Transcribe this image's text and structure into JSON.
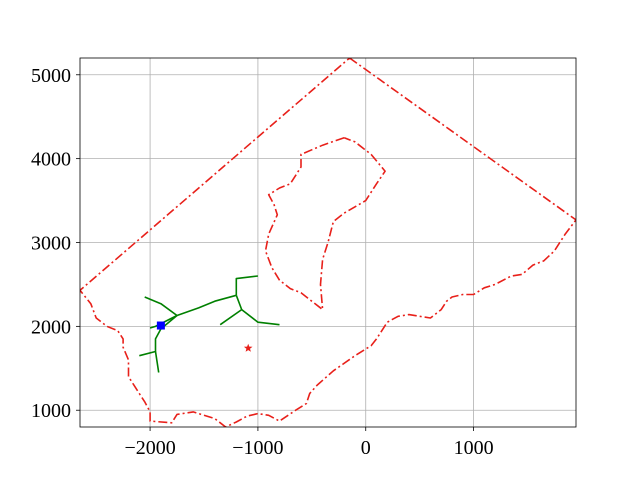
{
  "chart_data": {
    "type": "line",
    "title": "",
    "xlabel": "",
    "ylabel": "",
    "xlim": [
      -2650,
      1950
    ],
    "ylim": [
      800,
      5200
    ],
    "grid": true,
    "xticks": [
      -2000,
      -1000,
      0,
      1000
    ],
    "yticks": [
      1000,
      2000,
      3000,
      4000,
      5000
    ],
    "xtick_labels": [
      "−2000",
      "−1000",
      "0",
      "1000"
    ],
    "ytick_labels": [
      "1000",
      "2000",
      "3000",
      "4000",
      "5000"
    ],
    "series": [
      {
        "kind": "boundary-outer",
        "style": "dashdot",
        "color": "#e8201a",
        "points": [
          [
            -150,
            5200
          ],
          [
            1950,
            3270
          ],
          [
            1850,
            3100
          ],
          [
            1750,
            2900
          ],
          [
            1650,
            2780
          ],
          [
            1550,
            2730
          ],
          [
            1450,
            2620
          ],
          [
            1350,
            2600
          ],
          [
            1200,
            2500
          ],
          [
            1100,
            2460
          ],
          [
            1000,
            2380
          ],
          [
            900,
            2380
          ],
          [
            800,
            2350
          ],
          [
            750,
            2300
          ],
          [
            700,
            2200
          ],
          [
            600,
            2100
          ],
          [
            500,
            2120
          ],
          [
            400,
            2140
          ],
          [
            300,
            2120
          ],
          [
            200,
            2050
          ],
          [
            100,
            1850
          ],
          [
            50,
            1770
          ],
          [
            -100,
            1650
          ],
          [
            -300,
            1470
          ],
          [
            -450,
            1300
          ],
          [
            -520,
            1200
          ],
          [
            -550,
            1080
          ],
          [
            -650,
            1000
          ],
          [
            -800,
            870
          ],
          [
            -900,
            940
          ],
          [
            -1000,
            960
          ],
          [
            -1100,
            930
          ],
          [
            -1200,
            860
          ],
          [
            -1300,
            800
          ],
          [
            -1400,
            900
          ],
          [
            -1600,
            980
          ],
          [
            -1750,
            950
          ],
          [
            -1800,
            850
          ],
          [
            -2000,
            870
          ],
          [
            -2000,
            980
          ],
          [
            -2050,
            1100
          ],
          [
            -2100,
            1200
          ],
          [
            -2150,
            1300
          ],
          [
            -2200,
            1400
          ],
          [
            -2200,
            1600
          ],
          [
            -2250,
            1750
          ],
          [
            -2250,
            1850
          ],
          [
            -2300,
            1950
          ],
          [
            -2400,
            2000
          ],
          [
            -2500,
            2100
          ],
          [
            -2550,
            2270
          ],
          [
            -2650,
            2430
          ],
          [
            -150,
            5200
          ]
        ]
      },
      {
        "kind": "boundary-inner",
        "style": "dashdot",
        "color": "#e8201a",
        "points": [
          [
            -200,
            4250
          ],
          [
            -400,
            4160
          ],
          [
            -600,
            4050
          ],
          [
            -600,
            3900
          ],
          [
            -700,
            3700
          ],
          [
            -800,
            3650
          ],
          [
            -900,
            3570
          ],
          [
            -850,
            3450
          ],
          [
            -820,
            3330
          ],
          [
            -900,
            3100
          ],
          [
            -930,
            2900
          ],
          [
            -870,
            2700
          ],
          [
            -800,
            2550
          ],
          [
            -700,
            2450
          ],
          [
            -600,
            2400
          ],
          [
            -400,
            2200
          ],
          [
            -420,
            2500
          ],
          [
            -400,
            2800
          ],
          [
            -350,
            3000
          ],
          [
            -300,
            3250
          ],
          [
            -200,
            3350
          ],
          [
            0,
            3500
          ],
          [
            100,
            3700
          ],
          [
            180,
            3850
          ],
          [
            50,
            4050
          ],
          [
            -100,
            4200
          ],
          [
            -200,
            4250
          ]
        ]
      },
      {
        "kind": "network",
        "style": "solid",
        "color": "#008000",
        "segments": [
          [
            [
              -2050,
              2350
            ],
            [
              -1900,
              2270
            ],
            [
              -1750,
              2130
            ]
          ],
          [
            [
              -1750,
              2130
            ],
            [
              -1950,
              2000
            ],
            [
              -2000,
              1980
            ]
          ],
          [
            [
              -1750,
              2130
            ],
            [
              -1900,
              1970
            ],
            [
              -1950,
              1850
            ],
            [
              -1950,
              1700
            ],
            [
              -2100,
              1650
            ]
          ],
          [
            [
              -1950,
              1700
            ],
            [
              -1920,
              1450
            ]
          ],
          [
            [
              -1750,
              2130
            ],
            [
              -1550,
              2220
            ],
            [
              -1400,
              2300
            ],
            [
              -1200,
              2370
            ]
          ],
          [
            [
              -1200,
              2370
            ],
            [
              -1200,
              2570
            ],
            [
              -1000,
              2600
            ]
          ],
          [
            [
              -1200,
              2370
            ],
            [
              -1150,
              2200
            ],
            [
              -1350,
              2020
            ]
          ],
          [
            [
              -1150,
              2200
            ],
            [
              -1000,
              2050
            ],
            [
              -800,
              2020
            ]
          ]
        ]
      }
    ],
    "markers": [
      {
        "kind": "square",
        "color": "#0000ff",
        "x": -1900,
        "y": 2010
      },
      {
        "kind": "star",
        "color": "#e8201a",
        "x": -1090,
        "y": 1740
      }
    ]
  }
}
